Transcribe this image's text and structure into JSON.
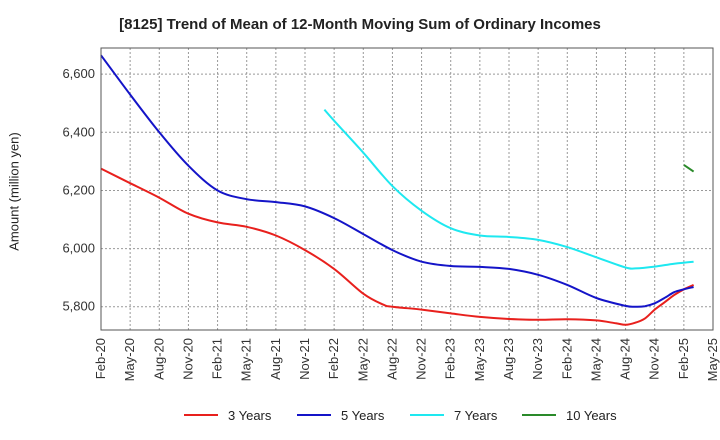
{
  "chart_data": {
    "type": "line",
    "title": "[8125]  Trend of Mean of 12-Month Moving Sum of Ordinary Incomes",
    "xlabel": "",
    "ylabel": "Amount (million yen)",
    "ylim": [
      5720,
      6690
    ],
    "yticks": [
      5800,
      6000,
      6200,
      6400,
      6600
    ],
    "ytick_labels": [
      "5,800",
      "6,000",
      "6,200",
      "6,400",
      "6,600"
    ],
    "xtick_labels": [
      "Feb-20",
      "May-20",
      "Aug-20",
      "Nov-20",
      "Feb-21",
      "May-21",
      "Aug-21",
      "Nov-21",
      "Feb-22",
      "May-22",
      "Aug-22",
      "Nov-22",
      "Feb-23",
      "May-23",
      "Aug-23",
      "Nov-23",
      "Feb-24",
      "May-24",
      "Aug-24",
      "Nov-24",
      "Feb-25",
      "May-25"
    ],
    "grid": true,
    "legend_position": "bottom",
    "series": [
      {
        "name": "3 Years",
        "color": "#e8201d",
        "points": [
          [
            0,
            6275
          ],
          [
            3,
            6225
          ],
          [
            6,
            6175
          ],
          [
            9,
            6120
          ],
          [
            12,
            6090
          ],
          [
            15,
            6075
          ],
          [
            18,
            6045
          ],
          [
            21,
            5995
          ],
          [
            24,
            5930
          ],
          [
            27,
            5845
          ],
          [
            29,
            5808
          ],
          [
            30,
            5800
          ],
          [
            33,
            5790
          ],
          [
            36,
            5777
          ],
          [
            39,
            5765
          ],
          [
            42,
            5758
          ],
          [
            45,
            5755
          ],
          [
            48,
            5757
          ],
          [
            51,
            5753
          ],
          [
            53,
            5743
          ],
          [
            54,
            5738
          ],
          [
            55,
            5745
          ],
          [
            56,
            5760
          ],
          [
            57,
            5790
          ],
          [
            58,
            5815
          ],
          [
            59,
            5840
          ],
          [
            60,
            5860
          ],
          [
            61,
            5875
          ]
        ]
      },
      {
        "name": "5 Years",
        "color": "#1414c8",
        "points": [
          [
            0,
            6665
          ],
          [
            3,
            6530
          ],
          [
            6,
            6400
          ],
          [
            9,
            6285
          ],
          [
            12,
            6200
          ],
          [
            15,
            6170
          ],
          [
            18,
            6160
          ],
          [
            21,
            6145
          ],
          [
            24,
            6105
          ],
          [
            27,
            6050
          ],
          [
            30,
            5995
          ],
          [
            33,
            5955
          ],
          [
            36,
            5940
          ],
          [
            39,
            5937
          ],
          [
            42,
            5930
          ],
          [
            45,
            5910
          ],
          [
            48,
            5875
          ],
          [
            51,
            5830
          ],
          [
            54,
            5803
          ],
          [
            55,
            5800
          ],
          [
            56,
            5802
          ],
          [
            57,
            5812
          ],
          [
            58,
            5830
          ],
          [
            59,
            5850
          ],
          [
            60,
            5860
          ],
          [
            61,
            5868
          ]
        ]
      },
      {
        "name": "7 Years",
        "color": "#1ee8f0",
        "points": [
          [
            23,
            6478
          ],
          [
            24,
            6440
          ],
          [
            27,
            6330
          ],
          [
            30,
            6215
          ],
          [
            33,
            6130
          ],
          [
            36,
            6070
          ],
          [
            39,
            6045
          ],
          [
            42,
            6040
          ],
          [
            45,
            6030
          ],
          [
            48,
            6005
          ],
          [
            51,
            5970
          ],
          [
            54,
            5935
          ],
          [
            55,
            5932
          ],
          [
            57,
            5938
          ],
          [
            59,
            5948
          ],
          [
            61,
            5955
          ]
        ]
      },
      {
        "name": "10 Years",
        "color": "#2a8a2a",
        "points": [
          [
            60,
            6288
          ],
          [
            61,
            6265
          ]
        ]
      }
    ]
  }
}
